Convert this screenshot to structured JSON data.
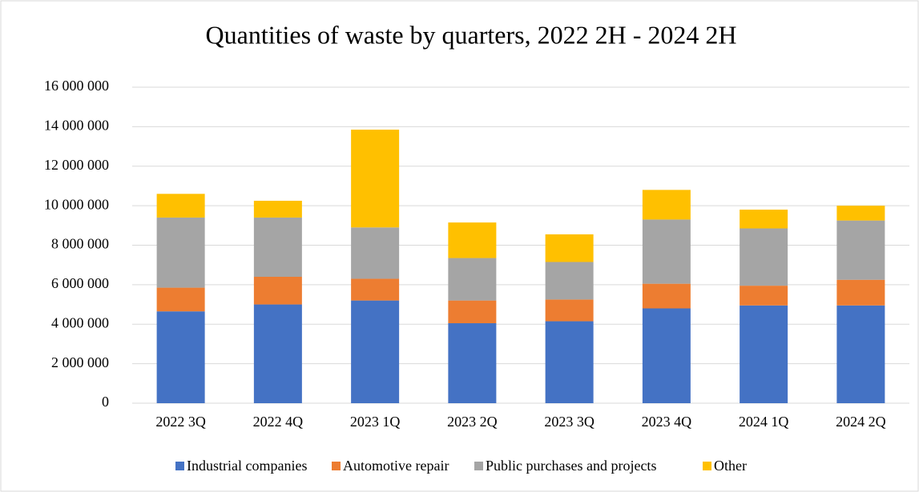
{
  "chart_data": {
    "type": "stacked_bar",
    "title": "Quantities of waste by quarters, 2022 2H - 2024 2H",
    "categories": [
      "2022 3Q",
      "2022 4Q",
      "2023 1Q",
      "2023 2Q",
      "2023 3Q",
      "2023 4Q",
      "2024 1Q",
      "2024 2Q"
    ],
    "series": [
      {
        "name": "Industrial companies",
        "color": "#4472c4",
        "values": [
          4650000,
          5000000,
          5200000,
          4050000,
          4150000,
          4800000,
          4950000,
          4950000
        ]
      },
      {
        "name": "Automotive repair",
        "color": "#ed7d31",
        "values": [
          1200000,
          1400000,
          1100000,
          1150000,
          1100000,
          1250000,
          1000000,
          1300000
        ]
      },
      {
        "name": "Public purchases and projects",
        "color": "#a5a5a5",
        "values": [
          3550000,
          3000000,
          2600000,
          2150000,
          1900000,
          3250000,
          2900000,
          3000000
        ]
      },
      {
        "name": "Other",
        "color": "#ffc000",
        "values": [
          1200000,
          850000,
          4950000,
          1800000,
          1400000,
          1500000,
          950000,
          750000
        ]
      }
    ],
    "ylim": [
      0,
      16000000
    ],
    "yticks": [
      0,
      {
        "value": 2000000,
        "label": "2 000 000"
      },
      {
        "value": 4000000,
        "label": "4 000 000"
      },
      {
        "value": 6000000,
        "label": "6 000 000"
      },
      {
        "value": 8000000,
        "label": "8 000 000"
      },
      {
        "value": 10000000,
        "label": "10 000 000"
      },
      {
        "value": 12000000,
        "label": "12 000 000"
      },
      {
        "value": 14000000,
        "label": "14 000 000"
      },
      {
        "value": 16000000,
        "label": "16 000 000"
      }
    ],
    "grid": true,
    "legend": "bottom"
  }
}
